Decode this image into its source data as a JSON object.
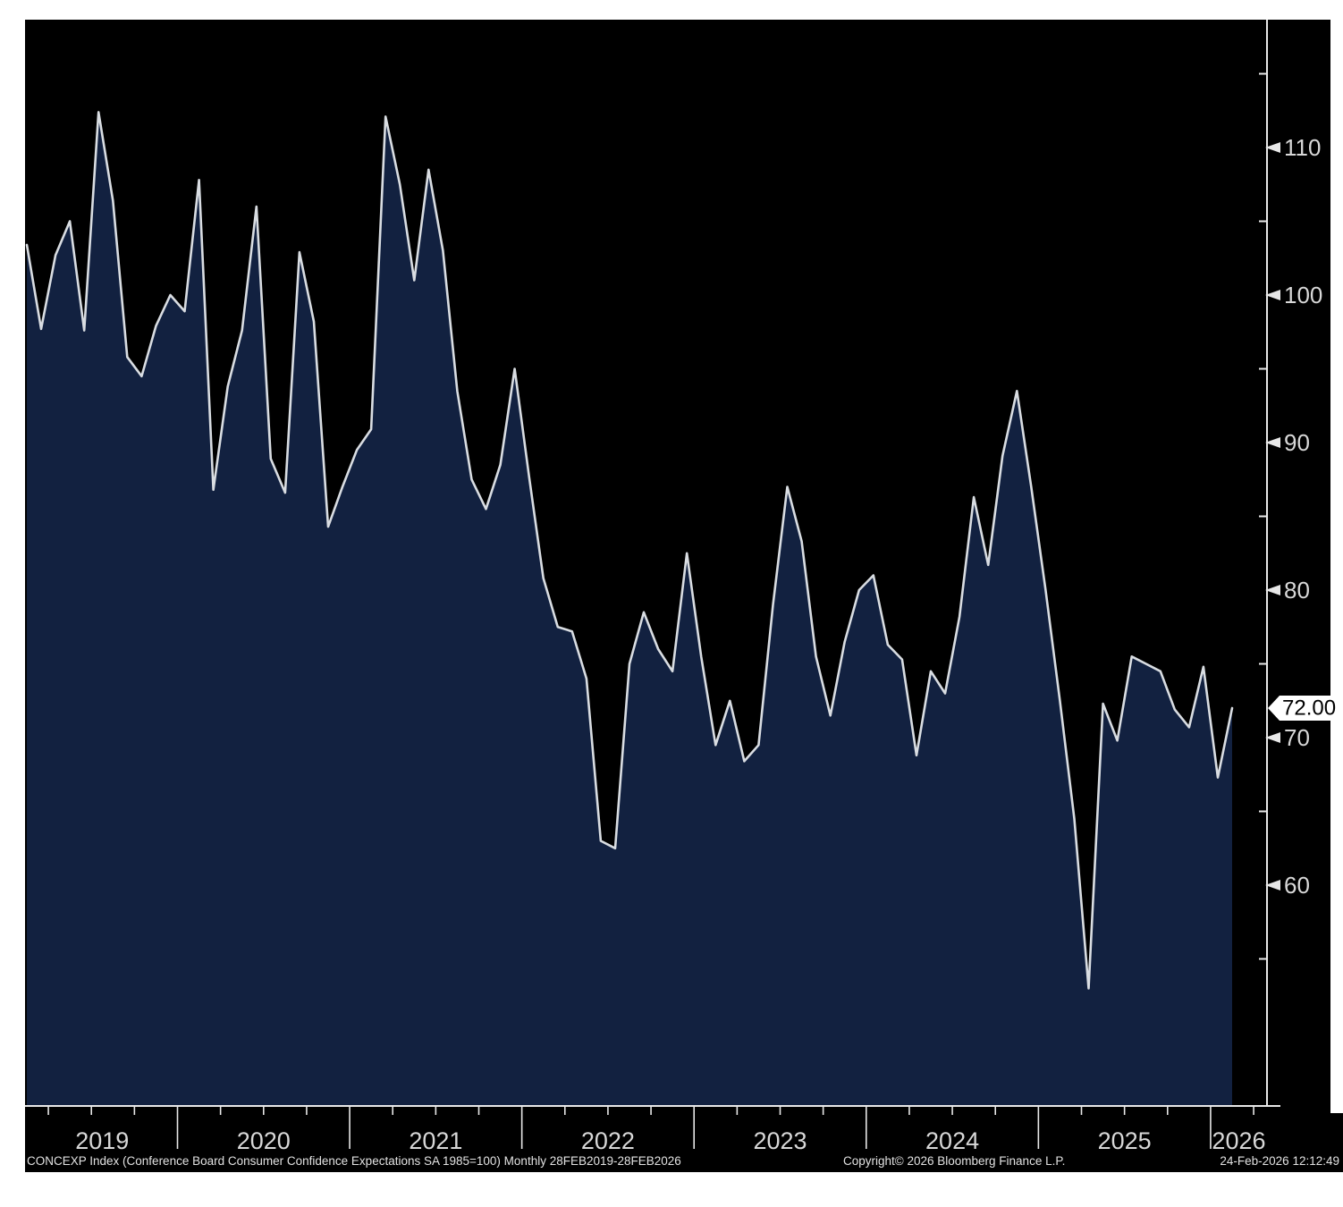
{
  "chart_data": {
    "type": "area",
    "title": "CONCEXP Index (Conference Board Consumer Confidence Expectations SA 1985=100) Monthly 28FEB2019-28FEB2026",
    "series_name": "CONCEXP Index",
    "frequency": "Monthly",
    "x_start": "Feb-2019",
    "x_end": "Feb-2026",
    "values": [
      103.4,
      97.7,
      102.7,
      105.0,
      97.6,
      112.4,
      106.4,
      95.8,
      94.5,
      97.9,
      100.0,
      98.9,
      107.8,
      86.8,
      93.8,
      97.6,
      106.0,
      88.9,
      86.6,
      102.9,
      98.2,
      84.3,
      87.0,
      89.5,
      90.9,
      112.1,
      107.5,
      101.0,
      108.5,
      103.0,
      93.5,
      87.5,
      85.5,
      88.5,
      95.0,
      87.7,
      80.8,
      77.5,
      77.2,
      74.0,
      63.0,
      62.5,
      75.0,
      78.5,
      76.0,
      74.5,
      82.5,
      75.5,
      69.5,
      72.5,
      68.4,
      69.5,
      79.0,
      87.0,
      83.3,
      75.5,
      71.5,
      76.5,
      80.0,
      81.0,
      76.3,
      75.3,
      68.8,
      74.5,
      73.0,
      78.2,
      86.3,
      81.7,
      89.1,
      93.5,
      87.0,
      80.0,
      72.5,
      64.5,
      53.0,
      72.3,
      69.8,
      75.5,
      75.0,
      74.5,
      71.9,
      70.7,
      74.8,
      67.3,
      72.0
    ],
    "year_labels": [
      "2019",
      "2020",
      "2021",
      "2022",
      "2023",
      "2024",
      "2025",
      "2026"
    ],
    "y_ticks_labeled": [
      60,
      70,
      80,
      90,
      100,
      110
    ],
    "y_ticks_minor": [
      55,
      65,
      75,
      85,
      95,
      105,
      115
    ],
    "last_value": 72.0,
    "last_value_label": "72.00",
    "legend_position": "none",
    "grid": "off"
  },
  "footer": {
    "description": "CONCEXP Index (Conference Board Consumer Confidence Expectations SA 1985=100) Monthly 28FEB2019-28FEB2026",
    "copyright": "Copyright© 2026 Bloomberg Finance L.P.",
    "timestamp": "24-Feb-2026 12:12:49"
  },
  "colors": {
    "page_background": "#ffffff",
    "panel_background": "#000000",
    "area_fill": "#122140",
    "line": "#d9dde2",
    "axis": "#e8e8e8",
    "tick_label": "#d8d8d8",
    "year_label": "#d8d8d8",
    "footer_text": "#e2e2e2",
    "last_value_bg": "#ffffff",
    "last_value_text": "#000000"
  }
}
